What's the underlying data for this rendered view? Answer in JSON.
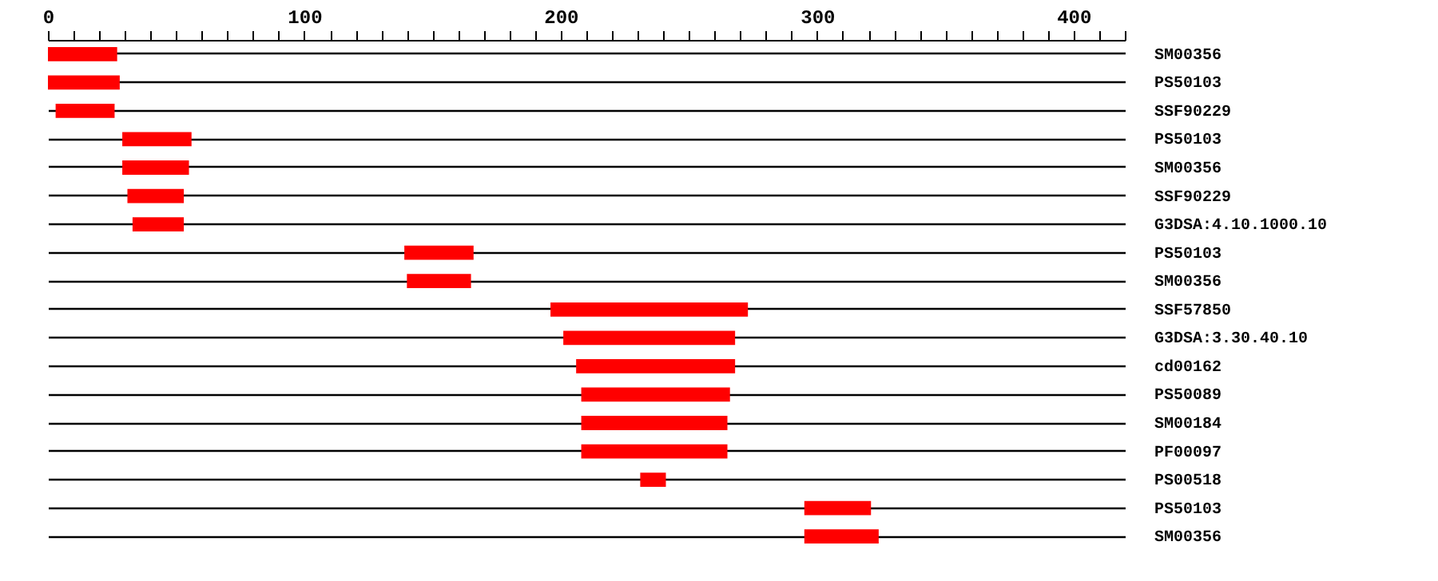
{
  "chart_data": {
    "type": "bar",
    "orientation": "horizontal",
    "color": "#ff0000",
    "categories": [
      "SM00356",
      "PS50103",
      "SSF90229",
      "PS50103",
      "SM00356",
      "SSF90229",
      "G3DSA:4.10.1000.10",
      "PS50103",
      "SM00356",
      "SSF57850",
      "G3DSA:3.30.40.10",
      "cd00162",
      "PS50089",
      "SM00184",
      "PF00097",
      "PS00518",
      "PS50103",
      "SM00356"
    ],
    "base": [
      0,
      0,
      3,
      29,
      29,
      31,
      33,
      139,
      140,
      196,
      201,
      206,
      208,
      208,
      208,
      231,
      295,
      295
    ],
    "values": [
      27,
      28,
      23,
      27,
      26,
      22,
      20,
      27,
      25,
      77,
      67,
      62,
      58,
      57,
      57,
      10,
      26,
      29
    ],
    "xlim": [
      0,
      420
    ],
    "xticks": [
      0,
      {
        "value": 10,
        "label": null
      },
      {
        "value": 20,
        "label": null
      },
      {
        "value": 30,
        "label": null
      },
      {
        "value": 40,
        "label": null
      },
      {
        "value": 50,
        "label": null
      },
      {
        "value": 60,
        "label": null
      },
      {
        "value": 70,
        "label": null
      },
      {
        "value": 80,
        "label": null
      },
      {
        "value": 90,
        "label": null
      },
      100,
      {
        "value": 110,
        "label": null
      },
      {
        "value": 120,
        "label": null
      },
      {
        "value": 130,
        "label": null
      },
      {
        "value": 140,
        "label": null
      },
      {
        "value": 150,
        "label": null
      },
      {
        "value": 160,
        "label": null
      },
      {
        "value": 170,
        "label": null
      },
      {
        "value": 180,
        "label": null
      },
      {
        "value": 190,
        "label": null
      },
      200,
      {
        "value": 210,
        "label": null
      },
      {
        "value": 220,
        "label": null
      },
      {
        "value": 230,
        "label": null
      },
      {
        "value": 240,
        "label": null
      },
      {
        "value": 250,
        "label": null
      },
      {
        "value": 260,
        "label": null
      },
      {
        "value": 270,
        "label": null
      },
      {
        "value": 280,
        "label": null
      },
      {
        "value": 290,
        "label": null
      },
      300,
      {
        "value": 310,
        "label": null
      },
      {
        "value": 320,
        "label": null
      },
      {
        "value": 330,
        "label": null
      },
      {
        "value": 340,
        "label": null
      },
      {
        "value": 350,
        "label": null
      },
      {
        "value": 360,
        "label": null
      },
      {
        "value": 370,
        "label": null
      },
      {
        "value": 380,
        "label": null
      },
      {
        "value": 390,
        "label": null
      },
      400,
      {
        "value": 410,
        "label": null
      },
      {
        "value": 420,
        "label": null
      }
    ],
    "grid": "y"
  }
}
